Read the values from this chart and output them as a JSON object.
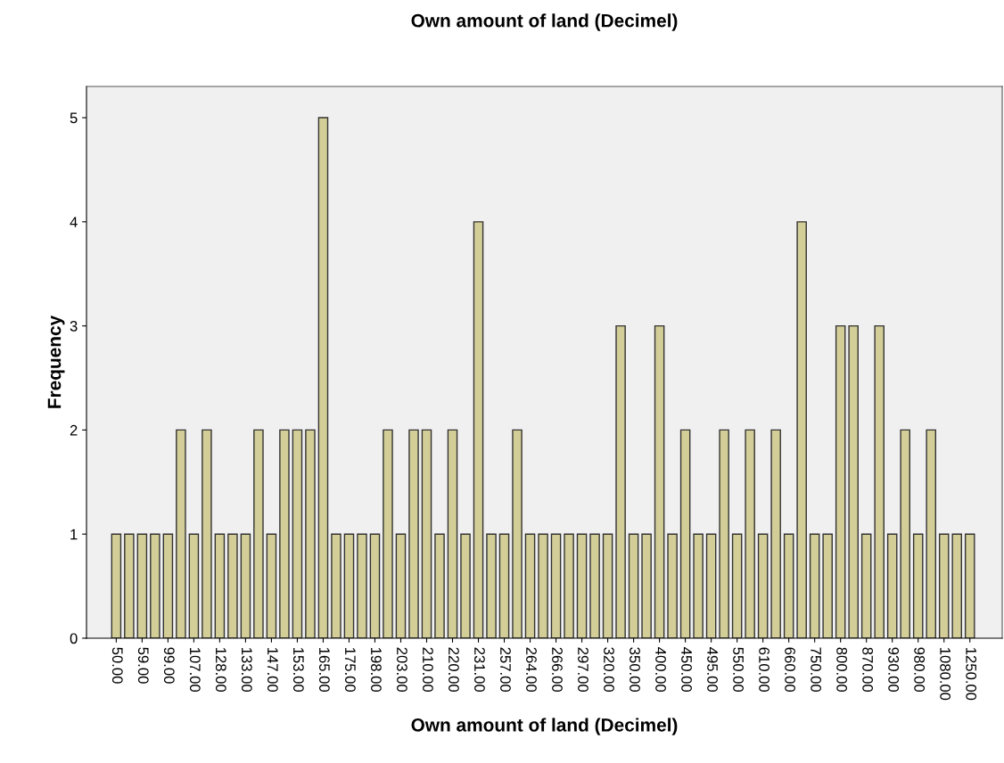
{
  "chart_data": {
    "type": "bar",
    "title": "Own amount of land (Decimel)",
    "xlabel": "Own amount of land (Decimel)",
    "ylabel": "Frequency",
    "categories": [
      "50.00",
      null,
      "59.00",
      null,
      "99.00",
      null,
      "107.00",
      null,
      "128.00",
      null,
      "133.00",
      null,
      "147.00",
      null,
      "153.00",
      null,
      "165.00",
      null,
      "175.00",
      null,
      "198.00",
      null,
      "203.00",
      null,
      "210.00",
      null,
      "220.00",
      null,
      "231.00",
      null,
      "257.00",
      null,
      "264.00",
      null,
      "266.00",
      null,
      "297.00",
      null,
      "320.00",
      null,
      "350.00",
      null,
      "400.00",
      null,
      "450.00",
      null,
      "495.00",
      null,
      "550.00",
      null,
      "610.00",
      null,
      "660.00",
      null,
      "750.00",
      null,
      "800.00",
      null,
      "870.00",
      null,
      "930.00",
      null,
      "980.00",
      null,
      "1080.00",
      null,
      "1250.00"
    ],
    "values": [
      1,
      1,
      1,
      1,
      1,
      2,
      1,
      2,
      1,
      1,
      1,
      2,
      1,
      2,
      2,
      2,
      5,
      1,
      1,
      1,
      1,
      2,
      1,
      2,
      2,
      1,
      2,
      1,
      4,
      1,
      1,
      2,
      1,
      1,
      1,
      1,
      1,
      1,
      1,
      3,
      1,
      1,
      3,
      1,
      2,
      1,
      1,
      2,
      1,
      2,
      1,
      2,
      1,
      4,
      1,
      1,
      3,
      3,
      1,
      3,
      1,
      2,
      1,
      2,
      1,
      1,
      1
    ],
    "color": "#d3ce97",
    "ylim": [
      0,
      5.3
    ],
    "yticks": [
      0,
      1,
      2,
      3,
      4,
      5
    ],
    "grid": false,
    "legend": false
  }
}
